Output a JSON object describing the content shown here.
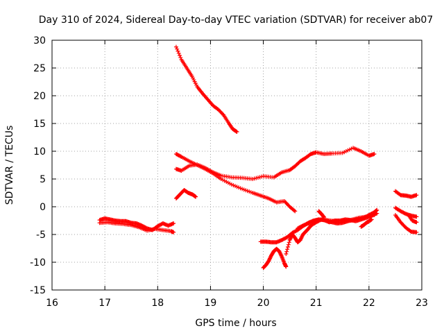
{
  "chart_data": {
    "type": "scatter",
    "title": "Day 310 of 2024, Sidereal Day-to-day VTEC variation (SDTVAR) for receiver ab07",
    "xlabel": "GPS time / hours",
    "ylabel": "SDTVAR / TECUs",
    "xlim": [
      16,
      23
    ],
    "ylim": [
      -15,
      30
    ],
    "xticks": [
      "16",
      "17",
      "18",
      "19",
      "20",
      "21",
      "22",
      "23"
    ],
    "yticks": [
      "-15",
      "-10",
      "-5",
      "0",
      "5",
      "10",
      "15",
      "20",
      "25",
      "30"
    ],
    "grid": true,
    "marker_color": "#ff0000",
    "series": [
      {
        "x": [
          18.35,
          18.45,
          18.55,
          18.65,
          18.75,
          18.85,
          18.95,
          19.05,
          19.15,
          19.25,
          19.35,
          19.42,
          19.5
        ],
        "y": [
          28.8,
          26.5,
          25.0,
          23.5,
          21.6,
          20.4,
          19.3,
          18.2,
          17.5,
          16.5,
          15.0,
          14.0,
          13.5
        ]
      },
      {
        "x": [
          18.35,
          18.45,
          18.6,
          18.75,
          18.9,
          19.05,
          19.2,
          19.4,
          19.6,
          19.8,
          19.95,
          20.1,
          20.25,
          20.4,
          20.5,
          20.6
        ],
        "y": [
          9.5,
          9.0,
          8.2,
          7.5,
          6.8,
          6.0,
          5.0,
          4.0,
          3.2,
          2.5,
          2.0,
          1.5,
          0.8,
          1.0,
          0.0,
          -0.8
        ]
      },
      {
        "x": [
          18.35,
          18.45,
          18.6,
          18.75,
          18.9,
          19.05,
          19.2,
          19.4,
          19.6,
          19.8,
          20.0,
          20.2,
          20.35,
          20.5,
          20.6,
          20.7,
          20.8,
          20.9,
          21.0,
          21.15,
          21.3,
          21.5,
          21.7,
          21.85,
          22.0,
          22.1
        ],
        "y": [
          6.8,
          6.5,
          7.4,
          7.6,
          7.0,
          6.2,
          5.6,
          5.3,
          5.2,
          5.0,
          5.5,
          5.3,
          6.2,
          6.6,
          7.3,
          8.2,
          8.8,
          9.5,
          9.8,
          9.5,
          9.6,
          9.7,
          10.6,
          10.0,
          9.2,
          9.5
        ]
      },
      {
        "x": [
          18.35,
          18.42,
          18.5,
          18.58,
          18.66,
          18.72
        ],
        "y": [
          1.5,
          2.2,
          3.0,
          2.5,
          2.2,
          1.8
        ]
      },
      {
        "x": [
          16.9,
          17.0,
          17.1,
          17.2,
          17.3,
          17.4,
          17.5,
          17.6,
          17.7,
          17.8,
          17.9,
          18.0,
          18.1,
          18.2,
          18.3
        ],
        "y": [
          -2.4,
          -2.1,
          -2.3,
          -2.5,
          -2.6,
          -2.6,
          -2.9,
          -3.0,
          -3.4,
          -3.9,
          -4.2,
          -3.5,
          -3.0,
          -3.4,
          -3.0
        ]
      },
      {
        "x": [
          16.9,
          17.05,
          17.2,
          17.35,
          17.5,
          17.65,
          17.8,
          17.95,
          18.1,
          18.25,
          18.3
        ],
        "y": [
          -2.9,
          -2.8,
          -3.0,
          -3.1,
          -3.3,
          -3.7,
          -4.3,
          -4.0,
          -4.2,
          -4.4,
          -4.6
        ]
      },
      {
        "x": [
          19.95,
          20.05,
          20.15,
          20.25,
          20.35,
          20.45,
          20.55,
          20.65,
          20.75,
          20.85,
          20.95,
          21.05,
          21.2,
          21.35,
          21.5,
          21.65,
          21.8,
          21.95,
          22.1
        ],
        "y": [
          -6.3,
          -6.3,
          -6.4,
          -6.4,
          -6.0,
          -5.5,
          -4.7,
          -4.2,
          -3.5,
          -2.9,
          -2.5,
          -2.3,
          -2.4,
          -2.6,
          -2.5,
          -2.4,
          -2.0,
          -1.8,
          -1.5
        ]
      },
      {
        "x": [
          20.0,
          20.05,
          20.1,
          20.15,
          20.2,
          20.25,
          20.3,
          20.35,
          20.4,
          20.43
        ],
        "y": [
          -11.0,
          -10.5,
          -9.8,
          -8.8,
          -8.0,
          -7.6,
          -8.0,
          -9.0,
          -10.2,
          -10.8
        ]
      },
      {
        "x": [
          20.43,
          20.5,
          20.55,
          20.6,
          20.65,
          20.7,
          20.75,
          20.8,
          20.85,
          20.9,
          21.0,
          21.1,
          21.2,
          21.3,
          21.4,
          21.5,
          21.6,
          21.7,
          21.8,
          21.9,
          22.0,
          22.1,
          22.15
        ],
        "y": [
          -8.5,
          -6.0,
          -5.0,
          -5.6,
          -6.4,
          -6.0,
          -5.0,
          -4.5,
          -4.0,
          -3.4,
          -2.8,
          -2.3,
          -2.5,
          -2.8,
          -3.0,
          -2.9,
          -2.6,
          -2.4,
          -2.2,
          -2.0,
          -1.5,
          -1.0,
          -0.6
        ]
      },
      {
        "x": [
          20.65,
          20.75,
          20.85,
          20.95,
          21.05,
          21.15,
          21.25,
          21.35,
          21.45,
          21.55,
          21.65,
          21.75,
          21.85,
          21.95,
          22.05,
          22.15
        ],
        "y": [
          -3.9,
          -3.4,
          -3.0,
          -2.6,
          -2.3,
          -2.4,
          -2.8,
          -2.5,
          -2.5,
          -2.3,
          -2.4,
          -2.6,
          -2.3,
          -2.0,
          -1.6,
          -1.2
        ]
      },
      {
        "x": [
          21.05,
          21.1,
          21.15
        ],
        "y": [
          -0.8,
          -1.3,
          -1.9
        ]
      },
      {
        "x": [
          21.85,
          21.9,
          21.95,
          22.0,
          22.05
        ],
        "y": [
          -3.6,
          -3.3,
          -2.9,
          -2.6,
          -2.3
        ]
      },
      {
        "x": [
          22.5,
          22.6,
          22.7,
          22.8,
          22.9
        ],
        "y": [
          2.8,
          2.1,
          2.0,
          1.8,
          2.1
        ]
      },
      {
        "x": [
          22.5,
          22.6,
          22.7,
          22.8,
          22.9
        ],
        "y": [
          -0.2,
          -0.8,
          -1.3,
          -1.6,
          -1.8
        ]
      },
      {
        "x": [
          22.5,
          22.6,
          22.7,
          22.8,
          22.9
        ],
        "y": [
          -1.5,
          -2.8,
          -3.8,
          -4.5,
          -4.6
        ]
      },
      {
        "x": [
          22.75,
          22.82,
          22.9
        ],
        "y": [
          -1.5,
          -2.5,
          -2.8
        ]
      }
    ]
  }
}
